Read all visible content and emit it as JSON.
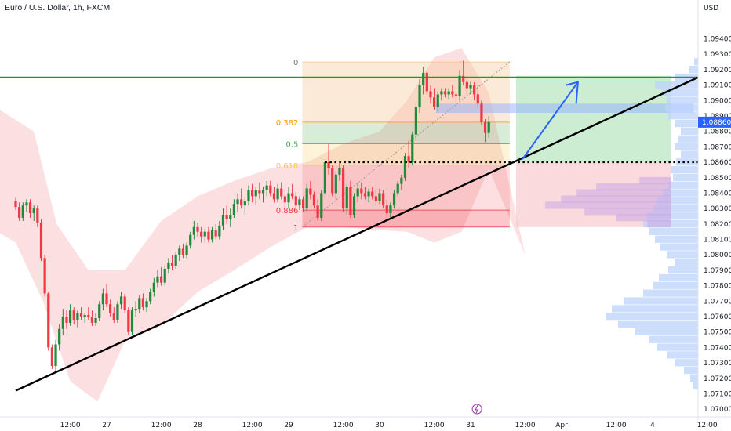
{
  "header": {
    "symbol_title": "Euro / U.S. Dollar, 1h, FXCM"
  },
  "colors": {
    "up": "#1f8a3a",
    "down": "#f23645",
    "resistance": "#1e9a2d",
    "trendline": "#000000",
    "arrow": "#2962ff",
    "price_badge": "#2962ff",
    "fib_0": "#f7c38e",
    "fib_0382": "#ff9800",
    "fib_05": "#4caf50",
    "fib_0618": "#f2c94c",
    "fib_0886": "#f23645"
  },
  "chart_data": {
    "type": "candlestick",
    "title": "Euro / U.S. Dollar, 1h, FXCM",
    "currency": "USD",
    "ylim": [
      1.0695,
      1.0955
    ],
    "y_ticks": [
      "1.07000",
      "1.07100",
      "1.07200",
      "1.07300",
      "1.07400",
      "1.07500",
      "1.07600",
      "1.07700",
      "1.07800",
      "1.07900",
      "1.08000",
      "1.08100",
      "1.08200",
      "1.08300",
      "1.08400",
      "1.08500",
      "1.08600",
      "1.08700",
      "1.08800",
      "1.08900",
      "1.09000",
      "1.09100",
      "1.09200",
      "1.09300",
      "1.09400"
    ],
    "x_ticks": [
      {
        "label": "12:00",
        "x": 0.6
      },
      {
        "label": "27",
        "x": 1.0
      },
      {
        "label": "12:00",
        "x": 1.6
      },
      {
        "label": "28",
        "x": 2.0
      },
      {
        "label": "12:00",
        "x": 2.6
      },
      {
        "label": "29",
        "x": 3.0
      },
      {
        "label": "12:00",
        "x": 3.6
      },
      {
        "label": "30",
        "x": 4.0
      },
      {
        "label": "12:00",
        "x": 4.6
      },
      {
        "label": "31",
        "x": 5.0
      },
      {
        "label": "12:00",
        "x": 5.6
      },
      {
        "label": "Apr",
        "x": 6.0
      },
      {
        "label": "12:00",
        "x": 6.6
      },
      {
        "label": "4",
        "x": 7.0
      },
      {
        "label": "12:00",
        "x": 7.6
      }
    ],
    "last_price": "1.08860",
    "candles": [
      [
        0.0,
        1.0835,
        1.0837,
        1.0829,
        1.0831
      ],
      [
        0.04,
        1.0831,
        1.0834,
        1.0822,
        1.0824
      ],
      [
        0.08,
        1.0824,
        1.0834,
        1.0822,
        1.0832
      ],
      [
        0.12,
        1.0832,
        1.0836,
        1.0828,
        1.0834
      ],
      [
        0.16,
        1.0834,
        1.0836,
        1.0824,
        1.0827
      ],
      [
        0.2,
        1.0827,
        1.0832,
        1.0822,
        1.083
      ],
      [
        0.24,
        1.083,
        1.0832,
        1.0818,
        1.0821
      ],
      [
        0.28,
        1.0821,
        1.0823,
        1.0796,
        1.0798
      ],
      [
        0.32,
        1.0798,
        1.08,
        1.0773,
        1.0775
      ],
      [
        0.36,
        1.0775,
        1.0776,
        1.0738,
        1.074
      ],
      [
        0.4,
        1.074,
        1.0742,
        1.0726,
        1.0728
      ],
      [
        0.44,
        1.0728,
        1.0745,
        1.0724,
        1.0742
      ],
      [
        0.48,
        1.0742,
        1.0755,
        1.0738,
        1.0752
      ],
      [
        0.52,
        1.0752,
        1.0765,
        1.0748,
        1.076
      ],
      [
        0.56,
        1.076,
        1.0764,
        1.0752,
        1.0756
      ],
      [
        0.6,
        1.0756,
        1.0768,
        1.0754,
        1.0764
      ],
      [
        0.64,
        1.0764,
        1.0766,
        1.0755,
        1.0758
      ],
      [
        0.68,
        1.0758,
        1.0764,
        1.0753,
        1.0762
      ],
      [
        0.72,
        1.0762,
        1.0766,
        1.0758,
        1.076
      ],
      [
        0.76,
        1.076,
        1.0762,
        1.0756,
        1.0761
      ],
      [
        0.8,
        1.0761,
        1.0766,
        1.0758,
        1.076
      ],
      [
        0.84,
        1.076,
        1.0764,
        1.0754,
        1.0756
      ],
      [
        0.88,
        1.0756,
        1.0762,
        1.0754,
        1.0759
      ],
      [
        0.92,
        1.0759,
        1.077,
        1.0757,
        1.0768
      ],
      [
        0.96,
        1.0768,
        1.0778,
        1.0764,
        1.0775
      ],
      [
        1.0,
        1.0775,
        1.0781,
        1.0766,
        1.0768
      ],
      [
        1.04,
        1.0768,
        1.0771,
        1.076,
        1.0762
      ],
      [
        1.08,
        1.0762,
        1.0766,
        1.0756,
        1.0758
      ],
      [
        1.12,
        1.0758,
        1.077,
        1.0756,
        1.0768
      ],
      [
        1.16,
        1.0768,
        1.0776,
        1.0765,
        1.0773
      ],
      [
        1.2,
        1.0773,
        1.0775,
        1.0762,
        1.0764
      ],
      [
        1.24,
        1.0764,
        1.0766,
        1.0748,
        1.075
      ],
      [
        1.28,
        1.075,
        1.0766,
        1.0748,
        1.0764
      ],
      [
        1.32,
        1.0764,
        1.077,
        1.076,
        1.0765
      ],
      [
        1.36,
        1.0765,
        1.0774,
        1.0762,
        1.0772
      ],
      [
        1.4,
        1.0772,
        1.0775,
        1.0764,
        1.0766
      ],
      [
        1.44,
        1.0766,
        1.0772,
        1.0763,
        1.077
      ],
      [
        1.48,
        1.077,
        1.0778,
        1.0768,
        1.0776
      ],
      [
        1.52,
        1.0776,
        1.0785,
        1.0773,
        1.0782
      ],
      [
        1.56,
        1.0782,
        1.079,
        1.0779,
        1.0786
      ],
      [
        1.6,
        1.0786,
        1.0792,
        1.078,
        1.0782
      ],
      [
        1.64,
        1.0782,
        1.0793,
        1.078,
        1.0791
      ],
      [
        1.68,
        1.0791,
        1.0798,
        1.0788,
        1.0795
      ],
      [
        1.72,
        1.0795,
        1.08,
        1.079,
        1.0793
      ],
      [
        1.76,
        1.0793,
        1.0802,
        1.0791,
        1.08
      ],
      [
        1.8,
        1.08,
        1.0806,
        1.0796,
        1.0804
      ],
      [
        1.84,
        1.0804,
        1.0807,
        1.0798,
        1.08
      ],
      [
        1.88,
        1.08,
        1.0808,
        1.0798,
        1.0806
      ],
      [
        1.92,
        1.0806,
        1.0815,
        1.0804,
        1.0813
      ],
      [
        1.96,
        1.0813,
        1.0822,
        1.081,
        1.0818
      ],
      [
        2.0,
        1.0818,
        1.0821,
        1.0812,
        1.0815
      ],
      [
        2.04,
        1.0815,
        1.0818,
        1.0808,
        1.0812
      ],
      [
        2.08,
        1.0812,
        1.0817,
        1.0808,
        1.0815
      ],
      [
        2.12,
        1.0815,
        1.0818,
        1.0808,
        1.081
      ],
      [
        2.16,
        1.081,
        1.0818,
        1.0808,
        1.0816
      ],
      [
        2.2,
        1.0816,
        1.082,
        1.081,
        1.0812
      ],
      [
        2.24,
        1.0812,
        1.0822,
        1.081,
        1.0819
      ],
      [
        2.28,
        1.0819,
        1.083,
        1.0816,
        1.0826
      ],
      [
        2.32,
        1.0826,
        1.0832,
        1.082,
        1.0823
      ],
      [
        2.36,
        1.0823,
        1.083,
        1.0818,
        1.0826
      ],
      [
        2.4,
        1.0826,
        1.0836,
        1.0824,
        1.0833
      ],
      [
        2.44,
        1.0833,
        1.084,
        1.0828,
        1.0836
      ],
      [
        2.48,
        1.0836,
        1.0843,
        1.083,
        1.0832
      ],
      [
        2.52,
        1.0832,
        1.0838,
        1.0826,
        1.0835
      ],
      [
        2.56,
        1.0835,
        1.0845,
        1.0832,
        1.0842
      ],
      [
        2.6,
        1.0842,
        1.0846,
        1.0834,
        1.0838
      ],
      [
        2.64,
        1.0838,
        1.0844,
        1.0832,
        1.0842
      ],
      [
        2.68,
        1.0842,
        1.0847,
        1.0836,
        1.084
      ],
      [
        2.72,
        1.084,
        1.0844,
        1.0834,
        1.0842
      ],
      [
        2.76,
        1.0842,
        1.0848,
        1.0838,
        1.0845
      ],
      [
        2.8,
        1.0845,
        1.0848,
        1.0838,
        1.084
      ],
      [
        2.84,
        1.084,
        1.0844,
        1.0834,
        1.0836
      ],
      [
        2.88,
        1.0836,
        1.0846,
        1.0834,
        1.0843
      ],
      [
        2.92,
        1.0843,
        1.0847,
        1.0836,
        1.0838
      ],
      [
        2.96,
        1.0838,
        1.0842,
        1.0831,
        1.0834
      ],
      [
        3.0,
        1.0834,
        1.0844,
        1.083,
        1.084
      ],
      [
        3.04,
        1.084,
        1.0846,
        1.0836,
        1.0838
      ],
      [
        3.08,
        1.0838,
        1.0841,
        1.083,
        1.0832
      ],
      [
        3.12,
        1.0832,
        1.0838,
        1.0829,
        1.0836
      ],
      [
        3.16,
        1.0836,
        1.0838,
        1.0828,
        1.083
      ],
      [
        3.2,
        1.083,
        1.0846,
        1.0828,
        1.0843
      ],
      [
        3.24,
        1.0843,
        1.0848,
        1.0836,
        1.0839
      ],
      [
        3.28,
        1.0839,
        1.0841,
        1.083,
        1.0832
      ],
      [
        3.32,
        1.0832,
        1.0836,
        1.0822,
        1.0824
      ],
      [
        3.36,
        1.0824,
        1.0842,
        1.0822,
        1.084
      ],
      [
        3.4,
        1.084,
        1.0862,
        1.0838,
        1.086
      ],
      [
        3.44,
        1.086,
        1.0872,
        1.0852,
        1.0856
      ],
      [
        3.48,
        1.0856,
        1.0858,
        1.0838,
        1.084
      ],
      [
        3.52,
        1.084,
        1.0854,
        1.0836,
        1.0852
      ],
      [
        3.56,
        1.0852,
        1.086,
        1.0848,
        1.0856
      ],
      [
        3.6,
        1.0856,
        1.0858,
        1.0828,
        1.083
      ],
      [
        3.64,
        1.083,
        1.0846,
        1.0826,
        1.0844
      ],
      [
        3.68,
        1.0844,
        1.0848,
        1.0824,
        1.0826
      ],
      [
        3.72,
        1.0826,
        1.084,
        1.0824,
        1.0838
      ],
      [
        3.76,
        1.0838,
        1.0846,
        1.0834,
        1.0843
      ],
      [
        3.8,
        1.0843,
        1.0847,
        1.0836,
        1.084
      ],
      [
        3.84,
        1.084,
        1.0844,
        1.0836,
        1.0838
      ],
      [
        3.88,
        1.0838,
        1.0843,
        1.0834,
        1.0841
      ],
      [
        3.92,
        1.0841,
        1.0844,
        1.0836,
        1.0838
      ],
      [
        3.96,
        1.0838,
        1.0842,
        1.0832,
        1.0835
      ],
      [
        4.0,
        1.0835,
        1.0843,
        1.0833,
        1.084
      ],
      [
        4.04,
        1.084,
        1.0842,
        1.083,
        1.0832
      ],
      [
        4.08,
        1.0832,
        1.0836,
        1.0824,
        1.0827
      ],
      [
        4.12,
        1.0827,
        1.0834,
        1.0824,
        1.0832
      ],
      [
        4.16,
        1.0832,
        1.0842,
        1.083,
        1.084
      ],
      [
        4.2,
        1.084,
        1.0848,
        1.0838,
        1.0846
      ],
      [
        4.24,
        1.0846,
        1.0852,
        1.0842,
        1.085
      ],
      [
        4.28,
        1.085,
        1.0866,
        1.0848,
        1.0864
      ],
      [
        4.32,
        1.0864,
        1.0874,
        1.0856,
        1.086
      ],
      [
        4.36,
        1.086,
        1.088,
        1.0858,
        1.0878
      ],
      [
        4.4,
        1.0878,
        1.0898,
        1.0874,
        1.0896
      ],
      [
        4.44,
        1.0896,
        1.0914,
        1.0892,
        1.091
      ],
      [
        4.48,
        1.091,
        1.0922,
        1.0904,
        1.0918
      ],
      [
        4.52,
        1.0918,
        1.092,
        1.0904,
        1.0906
      ],
      [
        4.56,
        1.0906,
        1.091,
        1.0898,
        1.0902
      ],
      [
        4.6,
        1.0902,
        1.0908,
        1.0894,
        1.0896
      ],
      [
        4.64,
        1.0896,
        1.0906,
        1.0893,
        1.0904
      ],
      [
        4.68,
        1.0904,
        1.0908,
        1.09,
        1.0906
      ],
      [
        4.72,
        1.0906,
        1.0908,
        1.0902,
        1.0904
      ],
      [
        4.76,
        1.0904,
        1.0908,
        1.0901,
        1.0906
      ],
      [
        4.8,
        1.0906,
        1.091,
        1.0902,
        1.0904
      ],
      [
        4.84,
        1.0904,
        1.0906,
        1.0898,
        1.0903
      ],
      [
        4.88,
        1.0903,
        1.092,
        1.09,
        1.0916
      ],
      [
        4.92,
        1.0916,
        1.0926,
        1.091,
        1.0912
      ],
      [
        4.96,
        1.0912,
        1.0914,
        1.0904,
        1.0908
      ],
      [
        5.0,
        1.0908,
        1.0912,
        1.0904,
        1.091
      ],
      [
        5.04,
        1.091,
        1.0912,
        1.09,
        1.0904
      ],
      [
        5.08,
        1.0904,
        1.091,
        1.0896,
        1.0898
      ],
      [
        5.12,
        1.0898,
        1.09,
        1.0884,
        1.0886
      ],
      [
        5.16,
        1.0886,
        1.0888,
        1.0873,
        1.0879
      ],
      [
        5.2,
        1.0879,
        1.089,
        1.0876,
        1.0886
      ]
    ]
  }
}
